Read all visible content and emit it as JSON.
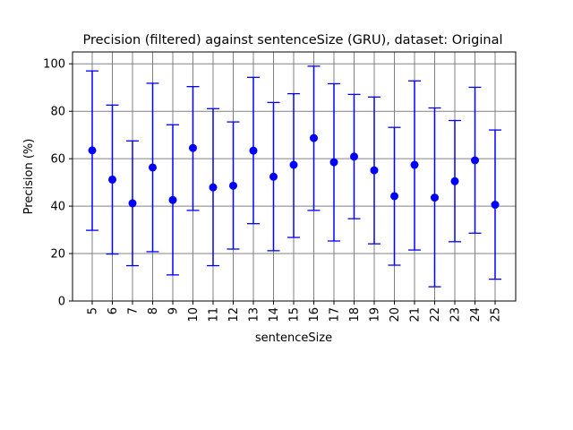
{
  "chart_data": {
    "type": "scatter",
    "title": "Precision (filtered) against sentenceSize (GRU), dataset: Original",
    "xlabel": "sentenceSize",
    "ylabel": "Precision (%)",
    "ylim": [
      0,
      105
    ],
    "yticks": [
      0,
      20,
      40,
      60,
      80,
      100
    ],
    "grid": true,
    "categories": [
      "5",
      "6",
      "7",
      "8",
      "9",
      "10",
      "11",
      "12",
      "13",
      "14",
      "15",
      "16",
      "17",
      "18",
      "19",
      "20",
      "21",
      "22",
      "23",
      "24",
      "25"
    ],
    "series": [
      {
        "color": "#0000ff",
        "marker": "circle",
        "values": [
          63.5,
          51.2,
          41.2,
          56.3,
          42.6,
          64.5,
          47.9,
          48.6,
          63.4,
          52.4,
          57.4,
          68.7,
          58.5,
          60.9,
          55.1,
          44.2,
          57.4,
          43.6,
          50.5,
          59.3,
          40.6
        ],
        "error_low": [
          29.8,
          19.8,
          14.9,
          20.8,
          11.0,
          38.2,
          14.9,
          21.9,
          32.6,
          21.2,
          26.8,
          38.2,
          25.3,
          34.7,
          24.1,
          15.1,
          21.5,
          6.0,
          25.0,
          28.6,
          9.2
        ],
        "error_high": [
          97.0,
          82.6,
          67.5,
          91.8,
          74.3,
          90.4,
          81.1,
          75.5,
          94.3,
          83.7,
          87.4,
          99.0,
          91.6,
          87.1,
          86.0,
          73.2,
          92.8,
          81.4,
          76.1,
          90.1,
          72.1
        ]
      }
    ]
  }
}
